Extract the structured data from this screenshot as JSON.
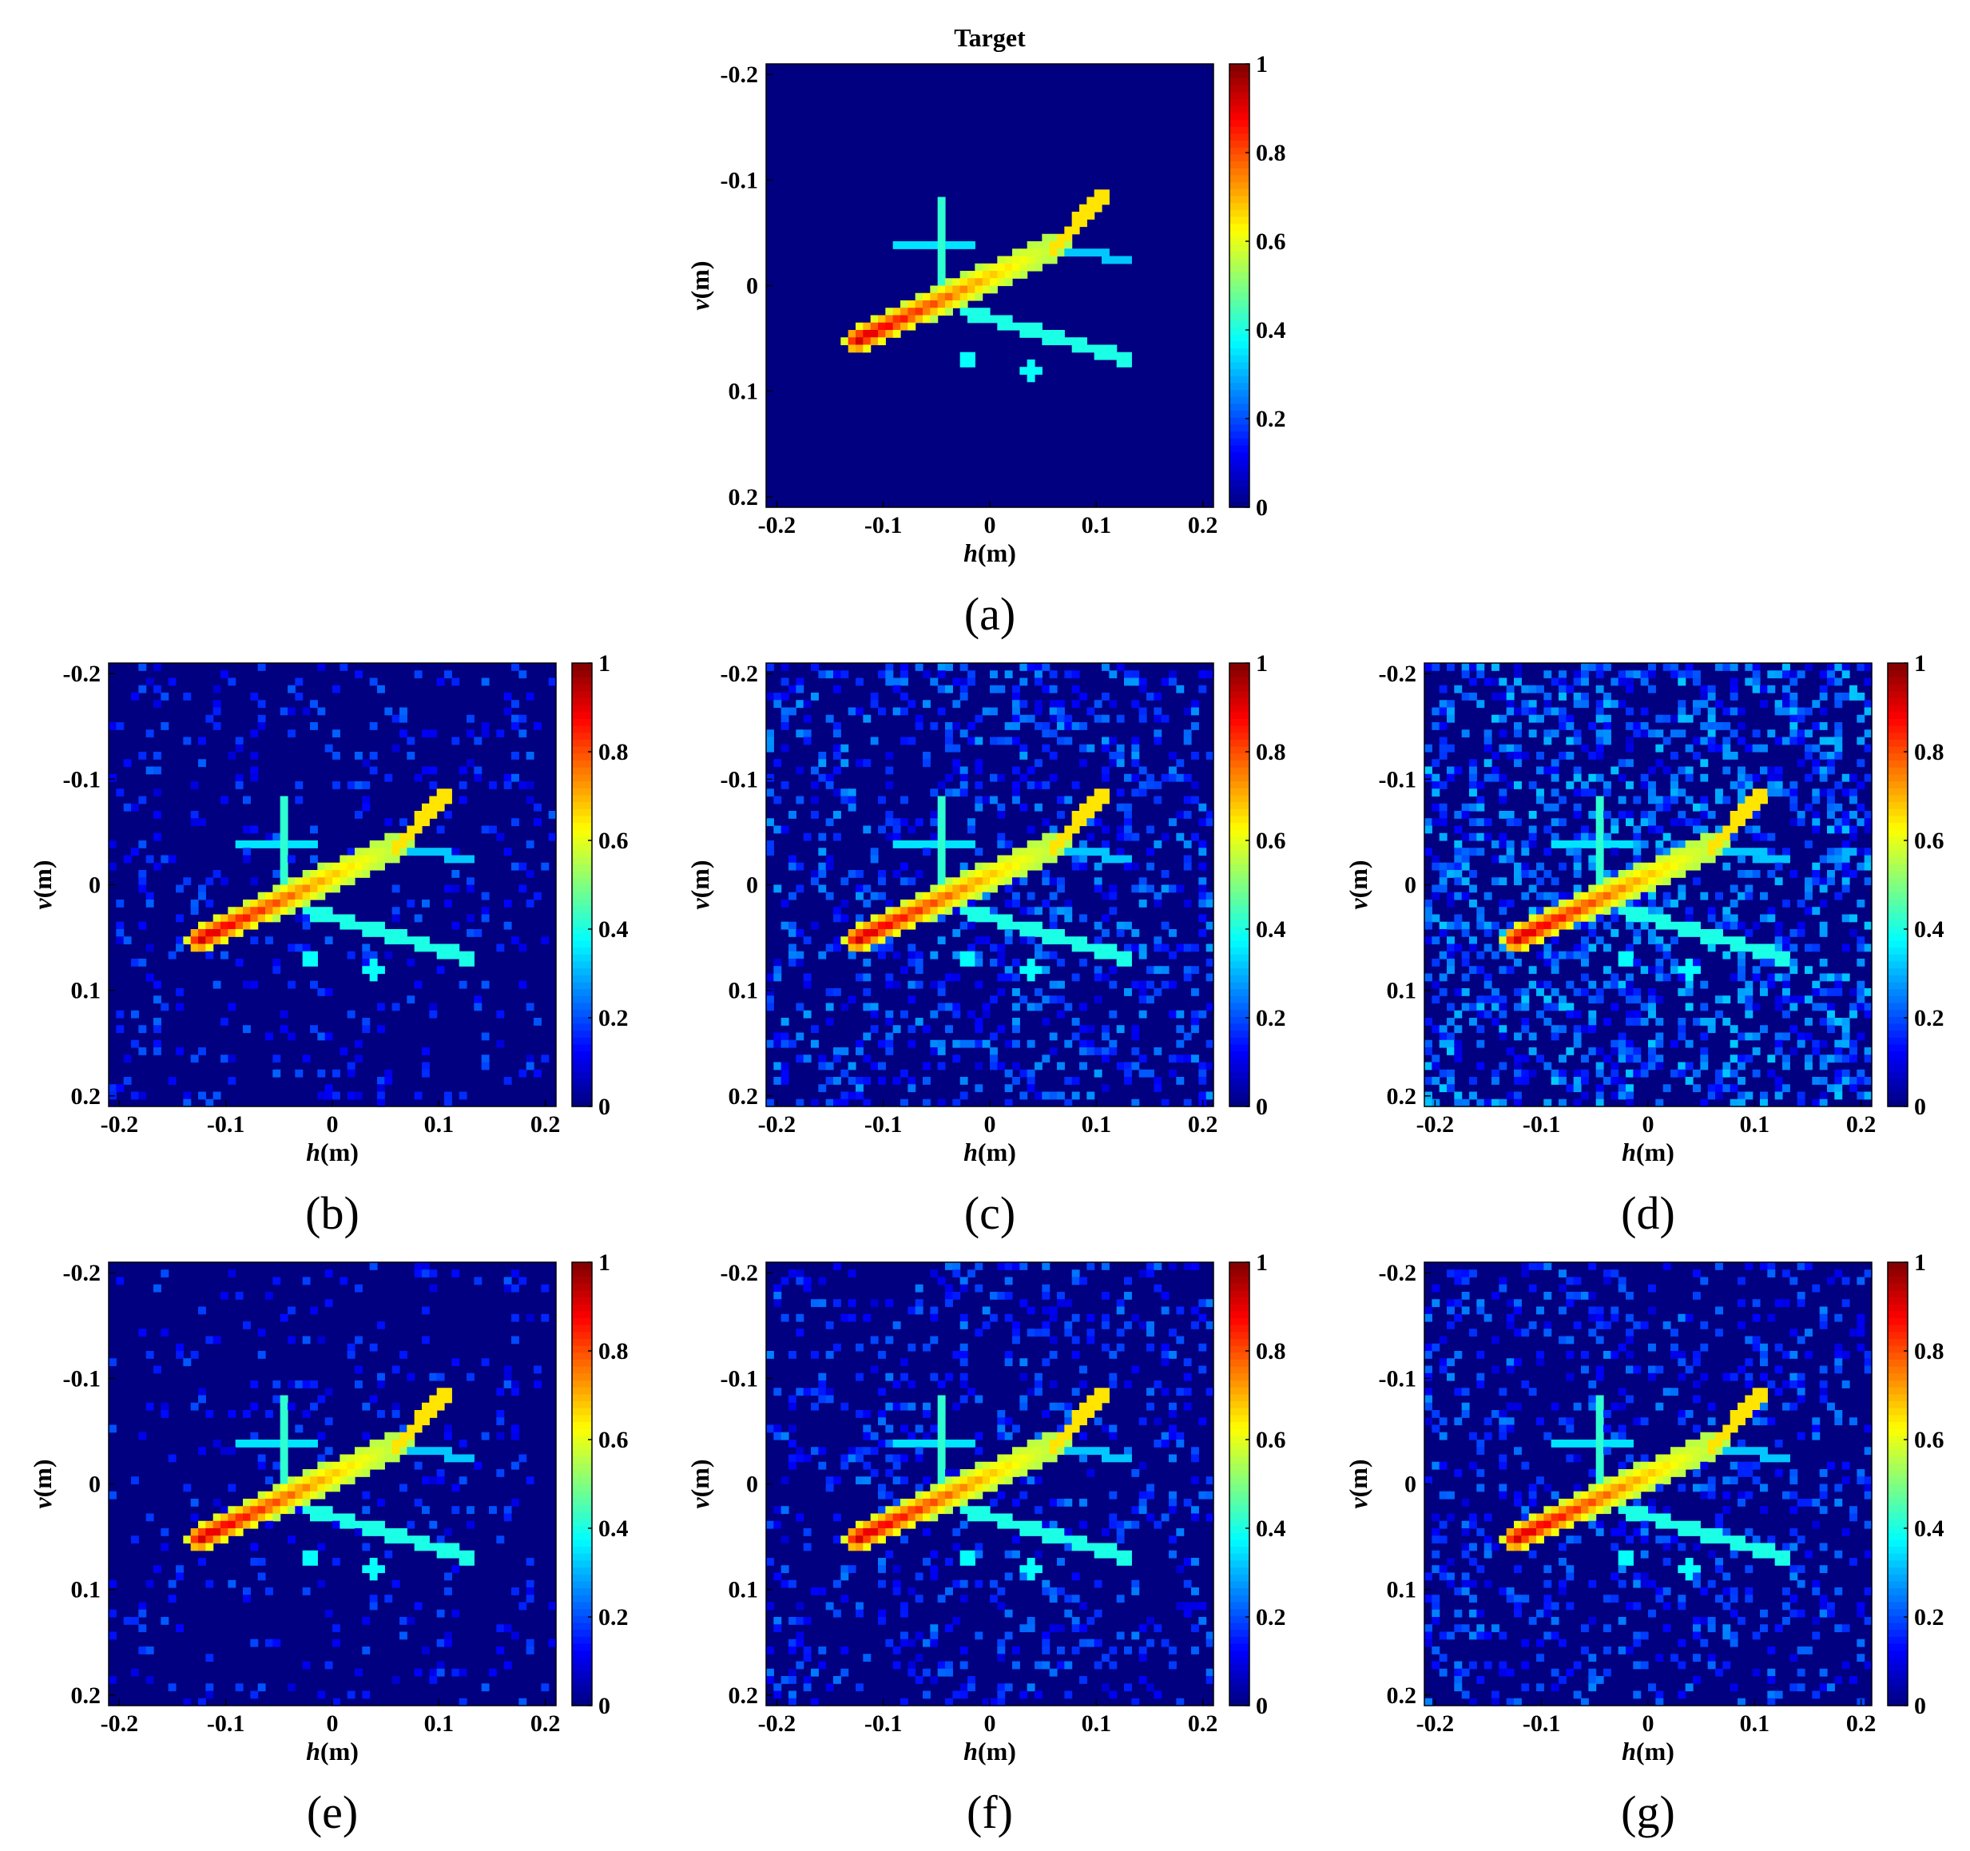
{
  "chart_data": [
    {
      "type": "heatmap",
      "caption": "(a)",
      "title": "Target",
      "noise": 0.0,
      "seed": 1,
      "xlabel": {
        "italic": "h",
        "rest": "(m)"
      },
      "ylabel": {
        "italic": "v",
        "rest": "(m)"
      },
      "xlim": [
        -0.21,
        0.21
      ],
      "ylim": [
        -0.21,
        0.21
      ],
      "y_reversed": true,
      "xticks": [
        "-0.2",
        "-0.1",
        "0",
        "0.1",
        "0.2"
      ],
      "yticks": [
        "-0.2",
        "-0.1",
        "0",
        "0.1",
        "0.2"
      ],
      "colorbar": {
        "ticks": [
          "0",
          "0.2",
          "0.4",
          "0.6",
          "0.8",
          "1"
        ],
        "range": [
          0,
          1
        ],
        "colormap": "jet"
      },
      "grid": false,
      "legend": "none"
    },
    {
      "type": "heatmap",
      "caption": "(b)",
      "title": "",
      "noise": 0.25,
      "seed": 7,
      "xlabel": {
        "italic": "h",
        "rest": "(m)"
      },
      "ylabel": {
        "italic": "v",
        "rest": "(m)"
      },
      "xlim": [
        -0.21,
        0.21
      ],
      "ylim": [
        -0.21,
        0.21
      ],
      "y_reversed": true,
      "xticks": [
        "-0.2",
        "-0.1",
        "0",
        "0.1",
        "0.2"
      ],
      "yticks": [
        "-0.2",
        "-0.1",
        "0",
        "0.1",
        "0.2"
      ],
      "colorbar": {
        "ticks": [
          "0",
          "0.2",
          "0.4",
          "0.6",
          "0.8",
          "1"
        ],
        "range": [
          0,
          1
        ],
        "colormap": "jet"
      },
      "grid": false,
      "legend": "none"
    },
    {
      "type": "heatmap",
      "caption": "(c)",
      "title": "",
      "noise": 0.55,
      "seed": 13,
      "xlabel": {
        "italic": "h",
        "rest": "(m)"
      },
      "ylabel": {
        "italic": "v",
        "rest": "(m)"
      },
      "xlim": [
        -0.21,
        0.21
      ],
      "ylim": [
        -0.21,
        0.21
      ],
      "y_reversed": true,
      "xticks": [
        "-0.2",
        "-0.1",
        "0",
        "0.1",
        "0.2"
      ],
      "yticks": [
        "-0.2",
        "-0.1",
        "0",
        "0.1",
        "0.2"
      ],
      "colorbar": {
        "ticks": [
          "0",
          "0.2",
          "0.4",
          "0.6",
          "0.8",
          "1"
        ],
        "range": [
          0,
          1
        ],
        "colormap": "jet"
      },
      "grid": false,
      "legend": "none"
    },
    {
      "type": "heatmap",
      "caption": "(d)",
      "title": "",
      "noise": 0.8,
      "seed": 21,
      "xlabel": {
        "italic": "h",
        "rest": "(m)"
      },
      "ylabel": {
        "italic": "v",
        "rest": "(m)"
      },
      "xlim": [
        -0.21,
        0.21
      ],
      "ylim": [
        -0.21,
        0.21
      ],
      "y_reversed": true,
      "xticks": [
        "-0.2",
        "-0.1",
        "0",
        "0.1",
        "0.2"
      ],
      "yticks": [
        "-0.2",
        "-0.1",
        "0",
        "0.1",
        "0.2"
      ],
      "colorbar": {
        "ticks": [
          "0",
          "0.2",
          "0.4",
          "0.6",
          "0.8",
          "1"
        ],
        "range": [
          0,
          1
        ],
        "colormap": "jet"
      },
      "grid": false,
      "legend": "none"
    },
    {
      "type": "heatmap",
      "caption": "(e)",
      "title": "",
      "noise": 0.2,
      "seed": 33,
      "xlabel": {
        "italic": "h",
        "rest": "(m)"
      },
      "ylabel": {
        "italic": "v",
        "rest": "(m)"
      },
      "xlim": [
        -0.21,
        0.21
      ],
      "ylim": [
        -0.21,
        0.21
      ],
      "y_reversed": true,
      "xticks": [
        "-0.2",
        "-0.1",
        "0",
        "0.1",
        "0.2"
      ],
      "yticks": [
        "-0.2",
        "-0.1",
        "0",
        "0.1",
        "0.2"
      ],
      "colorbar": {
        "ticks": [
          "0",
          "0.2",
          "0.4",
          "0.6",
          "0.8",
          "1"
        ],
        "range": [
          0,
          1
        ],
        "colormap": "jet"
      },
      "grid": false,
      "legend": "none"
    },
    {
      "type": "heatmap",
      "caption": "(f)",
      "title": "",
      "noise": 0.4,
      "seed": 45,
      "xlabel": {
        "italic": "h",
        "rest": "(m)"
      },
      "ylabel": {
        "italic": "v",
        "rest": "(m)"
      },
      "xlim": [
        -0.21,
        0.21
      ],
      "ylim": [
        -0.21,
        0.21
      ],
      "y_reversed": true,
      "xticks": [
        "-0.2",
        "-0.1",
        "0",
        "0.1",
        "0.2"
      ],
      "yticks": [
        "-0.2",
        "-0.1",
        "0",
        "0.1",
        "0.2"
      ],
      "colorbar": {
        "ticks": [
          "0",
          "0.2",
          "0.4",
          "0.6",
          "0.8",
          "1"
        ],
        "range": [
          0,
          1
        ],
        "colormap": "jet"
      },
      "grid": false,
      "legend": "none"
    },
    {
      "type": "heatmap",
      "caption": "(g)",
      "title": "",
      "noise": 0.45,
      "seed": 57,
      "xlabel": {
        "italic": "h",
        "rest": "(m)"
      },
      "ylabel": {
        "italic": "v",
        "rest": "(m)"
      },
      "xlim": [
        -0.21,
        0.21
      ],
      "ylim": [
        -0.21,
        0.21
      ],
      "y_reversed": true,
      "xticks": [
        "-0.2",
        "-0.1",
        "0",
        "0.1",
        "0.2"
      ],
      "yticks": [
        "-0.2",
        "-0.1",
        "0",
        "0.1",
        "0.2"
      ],
      "colorbar": {
        "ticks": [
          "0",
          "0.2",
          "0.4",
          "0.6",
          "0.8",
          "1"
        ],
        "range": [
          0,
          1
        ],
        "colormap": "jet"
      },
      "grid": false,
      "legend": "none"
    }
  ]
}
